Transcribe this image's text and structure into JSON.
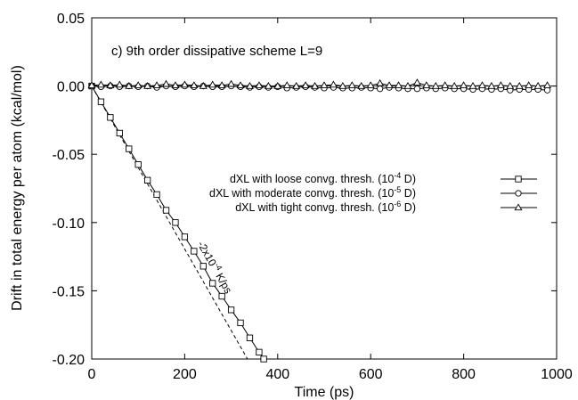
{
  "chart_data": {
    "type": "line",
    "title": "c) 9th order dissipative scheme L=9",
    "xlabel": "Time (ps)",
    "ylabel": "Drift in total energy per atom (kcal/mol)",
    "xlim": [
      0,
      1000
    ],
    "ylim": [
      -0.2,
      0.05
    ],
    "xticks": [
      "0",
      "200",
      "400",
      "600",
      "800",
      "1000"
    ],
    "yticks": [
      "0.05",
      "0.00",
      "-0.05",
      "-0.10",
      "-0.15",
      "-0.20"
    ],
    "grid": false,
    "legend_position": "center-right",
    "annotation": "-2x10^-4 K/ps",
    "annotation_parts": {
      "prefix": "-2x10",
      "exp": "-4",
      "suffix": " K/ps"
    },
    "reference_line": {
      "style": "dashed",
      "x": [
        0,
        335
      ],
      "y": [
        0.0,
        -0.2
      ]
    },
    "series": [
      {
        "name": "dXL with loose convg. thresh. (10^-4 D)",
        "name_parts": {
          "prefix": "dXL with loose convg. thresh. (10",
          "exp": "-4",
          "suffix": " D)"
        },
        "marker": "square",
        "x": [
          0,
          20,
          40,
          60,
          80,
          100,
          120,
          140,
          160,
          180,
          200,
          220,
          240,
          260,
          280,
          300,
          320,
          340,
          360,
          370
        ],
        "y": [
          0.0,
          -0.0115,
          -0.023,
          -0.0345,
          -0.046,
          -0.0575,
          -0.069,
          -0.0795,
          -0.091,
          -0.1,
          -0.1105,
          -0.121,
          -0.132,
          -0.1445,
          -0.154,
          -0.164,
          -0.1735,
          -0.1845,
          -0.195,
          -0.2
        ]
      },
      {
        "name": "dXL with moderate convg. thresh. (10^-5 D)",
        "name_parts": {
          "prefix": "dXL with moderate convg. thresh. (10",
          "exp": "-5",
          "suffix": " D)"
        },
        "marker": "circle",
        "x": [
          0,
          20,
          40,
          60,
          80,
          100,
          120,
          140,
          160,
          180,
          200,
          220,
          240,
          260,
          280,
          300,
          320,
          340,
          360,
          380,
          400,
          420,
          440,
          460,
          480,
          500,
          520,
          540,
          560,
          580,
          600,
          620,
          640,
          660,
          680,
          700,
          720,
          740,
          760,
          780,
          800,
          820,
          840,
          860,
          880,
          900,
          920,
          940,
          960,
          980
        ],
        "y": [
          0.0,
          -0.0005,
          0.0,
          -0.0005,
          0.0,
          -0.0005,
          0.0,
          -0.001,
          0.0,
          -0.0005,
          0.0,
          -0.0005,
          0.0,
          -0.0005,
          -0.0005,
          0.0,
          -0.0005,
          -0.001,
          -0.0005,
          -0.001,
          -0.0005,
          -0.0015,
          -0.001,
          -0.0005,
          -0.001,
          -0.0015,
          -0.001,
          -0.0015,
          -0.0015,
          -0.001,
          -0.0015,
          -0.002,
          -0.001,
          -0.0015,
          -0.002,
          -0.002,
          -0.0015,
          -0.002,
          -0.0015,
          -0.002,
          -0.002,
          -0.0025,
          -0.002,
          -0.0025,
          -0.002,
          -0.003,
          -0.0025,
          -0.0025,
          -0.0025,
          -0.003
        ]
      },
      {
        "name": "dXL with tight convg. thresh. (10^-6 D)",
        "name_parts": {
          "prefix": "dXL with tight convg. thresh. (10",
          "exp": "-6",
          "suffix": " D)"
        },
        "marker": "triangle",
        "x": [
          0,
          20,
          40,
          60,
          80,
          100,
          120,
          140,
          160,
          180,
          200,
          220,
          240,
          260,
          280,
          300,
          320,
          340,
          360,
          380,
          400,
          420,
          440,
          460,
          480,
          500,
          520,
          540,
          560,
          580,
          600,
          620,
          640,
          660,
          680,
          700,
          720,
          740,
          760,
          780,
          800,
          820,
          840,
          860,
          880,
          900,
          920,
          940,
          960,
          980
        ],
        "y": [
          0.0005,
          0.001,
          0.0005,
          0.001,
          0.0,
          0.0005,
          0.0,
          0.0005,
          0.0015,
          0.0005,
          0.001,
          0.0005,
          0.0,
          0.001,
          0.0005,
          0.0015,
          0.0005,
          0.0,
          0.0005,
          0.0,
          0.0,
          0.0005,
          0.0,
          0.0005,
          0.0,
          0.0005,
          0.001,
          0.0,
          0.0005,
          0.0,
          0.0005,
          0.002,
          0.0005,
          0.0005,
          0.0,
          0.0025,
          0.0005,
          0.0,
          0.0005,
          0.0,
          0.0005,
          0.0,
          0.0005,
          0.0,
          0.0005,
          0.0,
          0.0,
          0.0005,
          0.0,
          0.0005
        ]
      }
    ]
  }
}
